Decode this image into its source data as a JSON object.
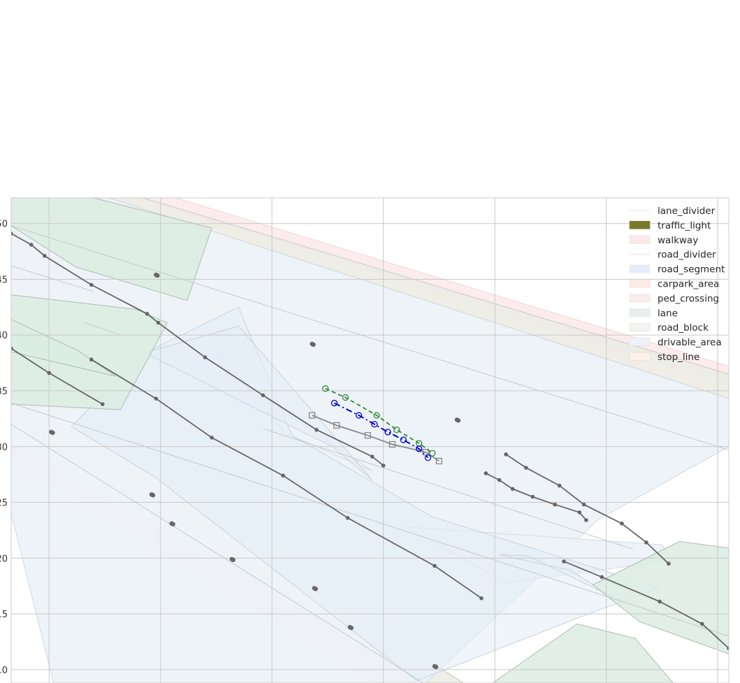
{
  "chart_data": {
    "type": "scatter",
    "description_of_content": "map-layer overlay with trajectories",
    "xlim": [
      -1.7,
      30.5
    ],
    "ylim": [
      8.8,
      52.3
    ],
    "x_ticks": [
      0,
      5,
      10,
      15,
      20,
      25,
      30
    ],
    "y_ticks": [
      10,
      15,
      20,
      25,
      30,
      35,
      40,
      45,
      50
    ],
    "y_tick_labels": [
      "10",
      "15",
      "20",
      "25",
      "30",
      "35",
      "40",
      "45",
      "50"
    ],
    "grid": true,
    "legend_position": "top-right",
    "legend": [
      {
        "label": "lane_divider",
        "color": "#f2f2f2",
        "kind": "line"
      },
      {
        "label": "traffic_light",
        "color": "#7a7a2c",
        "kind": "patch"
      },
      {
        "label": "walkway",
        "color": "#fbe9ea",
        "kind": "patch"
      },
      {
        "label": "road_divider",
        "color": "#f4f0f0",
        "kind": "line"
      },
      {
        "label": "road_segment",
        "color": "#e4eef7",
        "kind": "patch"
      },
      {
        "label": "carpark_area",
        "color": "#fcebe3",
        "kind": "patch"
      },
      {
        "label": "ped_crossing",
        "color": "#fcecec",
        "kind": "patch"
      },
      {
        "label": "lane",
        "color": "#e5f1e8",
        "kind": "patch"
      },
      {
        "label": "road_block",
        "color": "#f2f6ef",
        "kind": "patch"
      },
      {
        "label": "drivable_area",
        "color": "#edf2f8",
        "kind": "patch"
      },
      {
        "label": "stop_line",
        "color": "#fcf1e8",
        "kind": "patch"
      }
    ],
    "layers": {
      "walkway": [
        [
          [
            -1.7,
            30.3
          ],
          [
            -1.7,
            28.8
          ],
          [
            14.5,
            8.8
          ],
          [
            17.2,
            8.8
          ]
        ],
        [
          [
            3.9,
            52.3
          ],
          [
            5.7,
            52.3
          ],
          [
            30.5,
            37.2
          ],
          [
            30.5,
            35.5
          ]
        ],
        [
          [
            -1.2,
            47.3
          ],
          [
            -0.2,
            48.3
          ],
          [
            0.5,
            46.0
          ],
          [
            -0.3,
            45.2
          ]
        ],
        [
          [
            -1.7,
            45.5
          ],
          [
            -1.3,
            43.8
          ],
          [
            -0.6,
            44.1
          ],
          [
            -1.4,
            45.9
          ]
        ]
      ],
      "road_block": [
        [
          [
            -1.7,
            34.8
          ],
          [
            -1.7,
            32.6
          ],
          [
            16.2,
            8.8
          ],
          [
            18.6,
            8.8
          ]
        ],
        [
          [
            2.7,
            52.3
          ],
          [
            4.2,
            52.3
          ],
          [
            30.5,
            36.5
          ],
          [
            30.5,
            34.3
          ]
        ]
      ],
      "drivable_area": [
        [
          [
            -1.7,
            52.3
          ],
          [
            2.7,
            52.3
          ],
          [
            30.5,
            34.3
          ],
          [
            30.5,
            30.0
          ],
          [
            24.6,
            23.4
          ],
          [
            21.8,
            18.0
          ],
          [
            16.9,
            8.8
          ],
          [
            0.2,
            8.8
          ],
          [
            -1.7,
            24.0
          ]
        ],
        [
          [
            7.2,
            39.5
          ],
          [
            8.0,
            36.5
          ],
          [
            14.5,
            27.8
          ],
          [
            10.6,
            31.2
          ]
        ],
        [
          [
            16.0,
            22.8
          ],
          [
            20.5,
            17.8
          ],
          [
            28.0,
            19.8
          ],
          [
            27.5,
            21.2
          ]
        ]
      ],
      "road_segment": [
        [
          [
            8.5,
            42.5
          ],
          [
            4.3,
            38.4
          ],
          [
            1.0,
            31.8
          ],
          [
            4.8,
            27.2
          ],
          [
            16.5,
            9.0
          ],
          [
            24.6,
            15.3
          ],
          [
            27.4,
            17.3
          ],
          [
            17.2,
            23.7
          ],
          [
            10.9,
            31.0
          ]
        ],
        [
          [
            4.3,
            38.4
          ],
          [
            8.5,
            40.8
          ],
          [
            14.5,
            27.0
          ],
          [
            12.7,
            30.0
          ]
        ],
        [
          [
            20.2,
            20.3
          ],
          [
            23.4,
            18.9
          ],
          [
            25.3,
            16.5
          ],
          [
            21.5,
            20.2
          ]
        ]
      ],
      "lane": [
        [
          [
            -1.7,
            49.8
          ],
          [
            -1.7,
            52.3
          ],
          [
            2.0,
            52.3
          ],
          [
            7.3,
            49.6
          ],
          [
            6.2,
            43.1
          ],
          [
            1.2,
            46.1
          ]
        ],
        [
          [
            -1.7,
            43.6
          ],
          [
            -1.7,
            33.8
          ],
          [
            3.2,
            33.3
          ],
          [
            5.3,
            41.1
          ],
          [
            3.9,
            42.3
          ]
        ],
        [
          [
            -1.7,
            38.5
          ],
          [
            -1.7,
            41.4
          ],
          [
            1.3,
            38.6
          ],
          [
            3.0,
            36.3
          ]
        ],
        [
          [
            24.4,
            17.6
          ],
          [
            28.3,
            21.5
          ],
          [
            30.5,
            20.9
          ],
          [
            30.5,
            11.4
          ],
          [
            26.5,
            14.3
          ]
        ],
        [
          [
            19.9,
            8.8
          ],
          [
            23.7,
            14.1
          ],
          [
            26.3,
            12.8
          ],
          [
            28.0,
            8.8
          ]
        ]
      ],
      "divider_lines": [
        [
          [
            -1.7,
            49.8
          ],
          [
            30.5,
            29.7
          ]
        ],
        [
          [
            -1.7,
            46.2
          ],
          [
            2.0,
            43.9
          ]
        ],
        [
          [
            -1.7,
            33.9
          ],
          [
            30.5,
            13.0
          ]
        ],
        [
          [
            -1.7,
            32.0
          ],
          [
            16.8,
            8.8
          ]
        ],
        [
          [
            9.6,
            31.6
          ],
          [
            26.2,
            20.8
          ]
        ],
        [
          [
            1.6,
            41.1
          ],
          [
            3.2,
            40.0
          ]
        ]
      ]
    },
    "series": [
      {
        "name": "",
        "style": "gray-solid-dots",
        "color": "#666666",
        "points": [
          [
            -1.7,
            49.1
          ],
          [
            -0.8,
            48.1
          ],
          [
            -0.2,
            47.1
          ],
          [
            1.9,
            44.5
          ],
          [
            4.4,
            41.9
          ],
          [
            4.9,
            41.1
          ],
          [
            7.0,
            38.0
          ],
          [
            9.6,
            34.6
          ],
          [
            12.0,
            31.5
          ],
          [
            14.5,
            29.1
          ],
          [
            15.0,
            28.3
          ]
        ]
      },
      {
        "name": "",
        "style": "gray-solid-dots",
        "color": "#666666",
        "points": [
          [
            -1.7,
            38.8
          ],
          [
            0.0,
            36.6
          ],
          [
            2.4,
            33.8
          ]
        ]
      },
      {
        "name": "",
        "style": "gray-solid-dots",
        "color": "#666666",
        "points": [
          [
            1.9,
            37.8
          ],
          [
            4.8,
            34.3
          ],
          [
            7.3,
            30.8
          ],
          [
            10.5,
            27.4
          ],
          [
            13.4,
            23.6
          ],
          [
            17.3,
            19.3
          ],
          [
            19.4,
            16.4
          ]
        ]
      },
      {
        "name": "",
        "style": "gray-solid-dots",
        "color": "#666666",
        "points": [
          [
            20.5,
            29.3
          ],
          [
            21.4,
            28.1
          ],
          [
            22.9,
            26.5
          ],
          [
            24.0,
            24.8
          ],
          [
            25.7,
            23.1
          ],
          [
            26.8,
            21.4
          ],
          [
            27.8,
            19.5
          ]
        ]
      },
      {
        "name": "",
        "style": "gray-solid-dots",
        "color": "#666666",
        "points": [
          [
            19.6,
            27.6
          ],
          [
            20.2,
            27.0
          ],
          [
            20.8,
            26.2
          ],
          [
            21.7,
            25.5
          ],
          [
            22.7,
            24.8
          ],
          [
            23.8,
            24.1
          ],
          [
            24.1,
            23.4
          ]
        ]
      },
      {
        "name": "",
        "style": "gray-solid-dots",
        "color": "#666666",
        "points": [
          [
            23.1,
            19.7
          ],
          [
            24.8,
            18.3
          ],
          [
            27.4,
            16.1
          ],
          [
            29.3,
            14.1
          ],
          [
            30.5,
            11.9
          ]
        ]
      },
      {
        "name": "",
        "style": "gray-squares",
        "color": "#888888",
        "points": [
          [
            11.8,
            32.8
          ],
          [
            12.9,
            31.9
          ],
          [
            14.3,
            31.0
          ],
          [
            15.4,
            30.2
          ],
          [
            16.9,
            29.5
          ],
          [
            17.5,
            28.7
          ]
        ]
      },
      {
        "name": "",
        "style": "green-dashed-circles",
        "color": "#2e8b2e",
        "points": [
          [
            12.4,
            35.2
          ],
          [
            13.3,
            34.4
          ],
          [
            14.7,
            32.8
          ],
          [
            15.6,
            31.5
          ],
          [
            16.6,
            30.3
          ],
          [
            17.2,
            29.4
          ]
        ]
      },
      {
        "name": "",
        "style": "blue-dashdot-circles",
        "color": "#0000dd",
        "points": [
          [
            12.8,
            33.9
          ],
          [
            13.9,
            32.8
          ],
          [
            14.6,
            32.0
          ],
          [
            15.2,
            31.3
          ],
          [
            15.9,
            30.6
          ],
          [
            16.6,
            29.8
          ],
          [
            17.0,
            29.0
          ]
        ]
      },
      {
        "name": "",
        "style": "gray-isolated-dots",
        "color": "#666666",
        "points": [
          [
            4.8,
            45.4
          ],
          [
            11.8,
            39.2
          ],
          [
            18.3,
            32.4
          ],
          [
            0.1,
            31.3
          ],
          [
            4.6,
            25.7
          ],
          [
            5.5,
            23.1
          ],
          [
            8.2,
            19.9
          ],
          [
            11.9,
            17.3
          ],
          [
            13.5,
            13.8
          ],
          [
            17.3,
            10.3
          ]
        ]
      }
    ]
  }
}
